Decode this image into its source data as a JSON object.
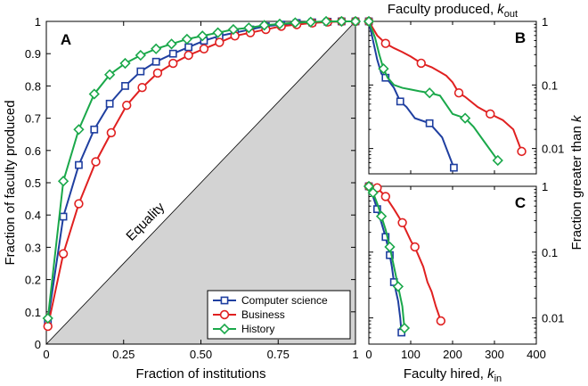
{
  "colors": {
    "computer_science": "#1f3fa0",
    "business": "#e02020",
    "history": "#1aa84a",
    "equality_fill": "#d3d3d3"
  },
  "chart_data": [
    {
      "id": "A",
      "type": "line",
      "panel_label": "A",
      "xlabel": "Fraction of institutions",
      "ylabel": "Fraction of faculty produced",
      "xlim": [
        0,
        1
      ],
      "ylim": [
        0,
        1
      ],
      "xticks": [
        {
          "v": 0,
          "label": "0"
        },
        {
          "v": 0.25,
          "label": "0.25"
        },
        {
          "v": 0.5,
          "label": "0.50"
        },
        {
          "v": 0.75,
          "label": "0.75"
        },
        {
          "v": 1,
          "label": "1"
        }
      ],
      "yticks": [
        {
          "v": 0,
          "label": "0"
        },
        {
          "v": 0.1,
          "label": "0.1"
        },
        {
          "v": 0.2,
          "label": "0.2"
        },
        {
          "v": 0.3,
          "label": "0.3"
        },
        {
          "v": 0.4,
          "label": "0.4"
        },
        {
          "v": 0.5,
          "label": "0.5"
        },
        {
          "v": 0.6,
          "label": "0.6"
        },
        {
          "v": 0.7,
          "label": "0.7"
        },
        {
          "v": 0.8,
          "label": "0.8"
        },
        {
          "v": 0.9,
          "label": "0.9"
        },
        {
          "v": 1,
          "label": "1"
        }
      ],
      "annotation": "Equality",
      "grid": false,
      "legend_position": "bottom-right",
      "series": [
        {
          "name": "Computer science",
          "key": "computer_science",
          "marker": "square",
          "x": [
            0.005,
            0.055,
            0.105,
            0.155,
            0.205,
            0.255,
            0.305,
            0.355,
            0.41,
            0.46,
            0.51,
            0.56,
            0.61,
            0.66,
            0.71,
            0.76,
            0.81,
            0.86,
            0.91,
            0.955,
            1.0
          ],
          "y": [
            0.07,
            0.395,
            0.555,
            0.665,
            0.745,
            0.8,
            0.845,
            0.875,
            0.9,
            0.92,
            0.94,
            0.955,
            0.965,
            0.975,
            0.985,
            0.99,
            0.995,
            0.997,
            0.999,
            1.0,
            1.0
          ]
        },
        {
          "name": "Business",
          "key": "business",
          "marker": "circle",
          "x": [
            0.005,
            0.055,
            0.105,
            0.16,
            0.21,
            0.26,
            0.31,
            0.36,
            0.41,
            0.46,
            0.51,
            0.56,
            0.61,
            0.66,
            0.71,
            0.76,
            0.81,
            0.86,
            0.91,
            0.955,
            1.0
          ],
          "y": [
            0.055,
            0.28,
            0.435,
            0.565,
            0.655,
            0.74,
            0.795,
            0.84,
            0.87,
            0.895,
            0.915,
            0.935,
            0.955,
            0.965,
            0.975,
            0.985,
            0.99,
            0.995,
            0.998,
            1.0,
            1.0
          ]
        },
        {
          "name": "History",
          "key": "history",
          "marker": "diamond",
          "x": [
            0.005,
            0.055,
            0.105,
            0.155,
            0.205,
            0.255,
            0.305,
            0.355,
            0.405,
            0.455,
            0.505,
            0.555,
            0.605,
            0.655,
            0.705,
            0.755,
            0.805,
            0.855,
            0.905,
            0.955,
            1.0
          ],
          "y": [
            0.08,
            0.505,
            0.665,
            0.775,
            0.835,
            0.87,
            0.895,
            0.915,
            0.93,
            0.945,
            0.955,
            0.965,
            0.975,
            0.98,
            0.988,
            0.992,
            0.996,
            0.998,
            1.0,
            1.0,
            1.0
          ]
        }
      ]
    },
    {
      "id": "B",
      "type": "line",
      "panel_label": "B",
      "scale_y": "log",
      "xlabel_main": "Faculty produced, ",
      "xlabel_var": "k",
      "xlabel_sub": "out",
      "ylabel_main": "Fraction greater than ",
      "ylabel_var": "k",
      "xlim": [
        0,
        400
      ],
      "ylim": [
        0.004,
        1
      ],
      "yticks": [
        {
          "v": 1,
          "label": "1"
        },
        {
          "v": 0.1,
          "label": "0.1"
        },
        {
          "v": 0.01,
          "label": "0.01"
        }
      ],
      "series": [
        {
          "key": "computer_science",
          "marker": "square",
          "x": [
            0,
            10,
            20,
            30,
            40,
            50,
            60,
            75,
            90,
            110,
            145,
            175,
            203
          ],
          "y": [
            1,
            0.5,
            0.25,
            0.15,
            0.13,
            0.11,
            0.09,
            0.055,
            0.045,
            0.03,
            0.025,
            0.015,
            0.005
          ],
          "marker_x": [
            0,
            40,
            75,
            145,
            203
          ],
          "marker_y": [
            1,
            0.13,
            0.055,
            0.025,
            0.005
          ]
        },
        {
          "key": "business",
          "marker": "circle",
          "x": [
            0,
            20,
            40,
            60,
            80,
            100,
            125,
            150,
            170,
            185,
            200,
            215,
            230,
            260,
            290,
            320,
            345,
            365
          ],
          "y": [
            1,
            0.6,
            0.45,
            0.38,
            0.33,
            0.28,
            0.22,
            0.19,
            0.16,
            0.14,
            0.11,
            0.075,
            0.065,
            0.045,
            0.035,
            0.028,
            0.02,
            0.009
          ],
          "marker_x": [
            0,
            40,
            125,
            215,
            290,
            365
          ],
          "marker_y": [
            1,
            0.45,
            0.22,
            0.075,
            0.035,
            0.009
          ]
        },
        {
          "key": "history",
          "marker": "diamond",
          "x": [
            0,
            15,
            25,
            35,
            45,
            60,
            80,
            100,
            120,
            145,
            170,
            200,
            230,
            250,
            275,
            308
          ],
          "y": [
            1,
            0.55,
            0.3,
            0.18,
            0.13,
            0.1,
            0.09,
            0.085,
            0.08,
            0.075,
            0.068,
            0.035,
            0.03,
            0.022,
            0.013,
            0.0065
          ],
          "marker_x": [
            0,
            35,
            145,
            230,
            308
          ],
          "marker_y": [
            1,
            0.18,
            0.075,
            0.03,
            0.0065
          ]
        }
      ]
    },
    {
      "id": "C",
      "type": "line",
      "panel_label": "C",
      "scale_y": "log",
      "xlabel_main": "Faculty hired, ",
      "xlabel_var": "k",
      "xlabel_sub": "in",
      "xlim": [
        0,
        400
      ],
      "ylim": [
        0.004,
        1
      ],
      "xticks": [
        {
          "v": 0,
          "label": "0"
        },
        {
          "v": 100,
          "label": "100"
        },
        {
          "v": 200,
          "label": "200"
        },
        {
          "v": 300,
          "label": "300"
        },
        {
          "v": 400,
          "label": "400"
        }
      ],
      "yticks": [
        {
          "v": 1,
          "label": "1"
        },
        {
          "v": 0.1,
          "label": "0.1"
        },
        {
          "v": 0.01,
          "label": "0.01"
        }
      ],
      "series": [
        {
          "key": "computer_science",
          "marker": "square",
          "x": [
            0,
            10,
            20,
            30,
            40,
            50,
            55,
            60,
            65,
            70,
            75,
            78
          ],
          "y": [
            1,
            0.7,
            0.45,
            0.28,
            0.17,
            0.09,
            0.06,
            0.035,
            0.025,
            0.018,
            0.01,
            0.006
          ],
          "marker_x": [
            0,
            20,
            40,
            50,
            60,
            78
          ],
          "marker_y": [
            1,
            0.45,
            0.17,
            0.09,
            0.035,
            0.006
          ]
        },
        {
          "key": "business",
          "marker": "circle",
          "x": [
            0,
            20,
            40,
            60,
            80,
            100,
            115,
            130,
            140,
            150,
            160,
            172
          ],
          "y": [
            1,
            0.95,
            0.7,
            0.45,
            0.28,
            0.15,
            0.1,
            0.06,
            0.035,
            0.025,
            0.015,
            0.009
          ],
          "marker_x": [
            0,
            20,
            40,
            80,
            110,
            172
          ],
          "marker_y": [
            1,
            0.95,
            0.7,
            0.28,
            0.12,
            0.009
          ]
        },
        {
          "key": "history",
          "marker": "diamond",
          "x": [
            0,
            10,
            20,
            30,
            40,
            50,
            60,
            70,
            80,
            85
          ],
          "y": [
            1,
            0.8,
            0.55,
            0.35,
            0.22,
            0.12,
            0.06,
            0.03,
            0.015,
            0.007
          ],
          "marker_x": [
            0,
            10,
            30,
            50,
            70,
            85
          ],
          "marker_y": [
            1,
            0.8,
            0.35,
            0.12,
            0.03,
            0.007
          ]
        }
      ]
    }
  ]
}
